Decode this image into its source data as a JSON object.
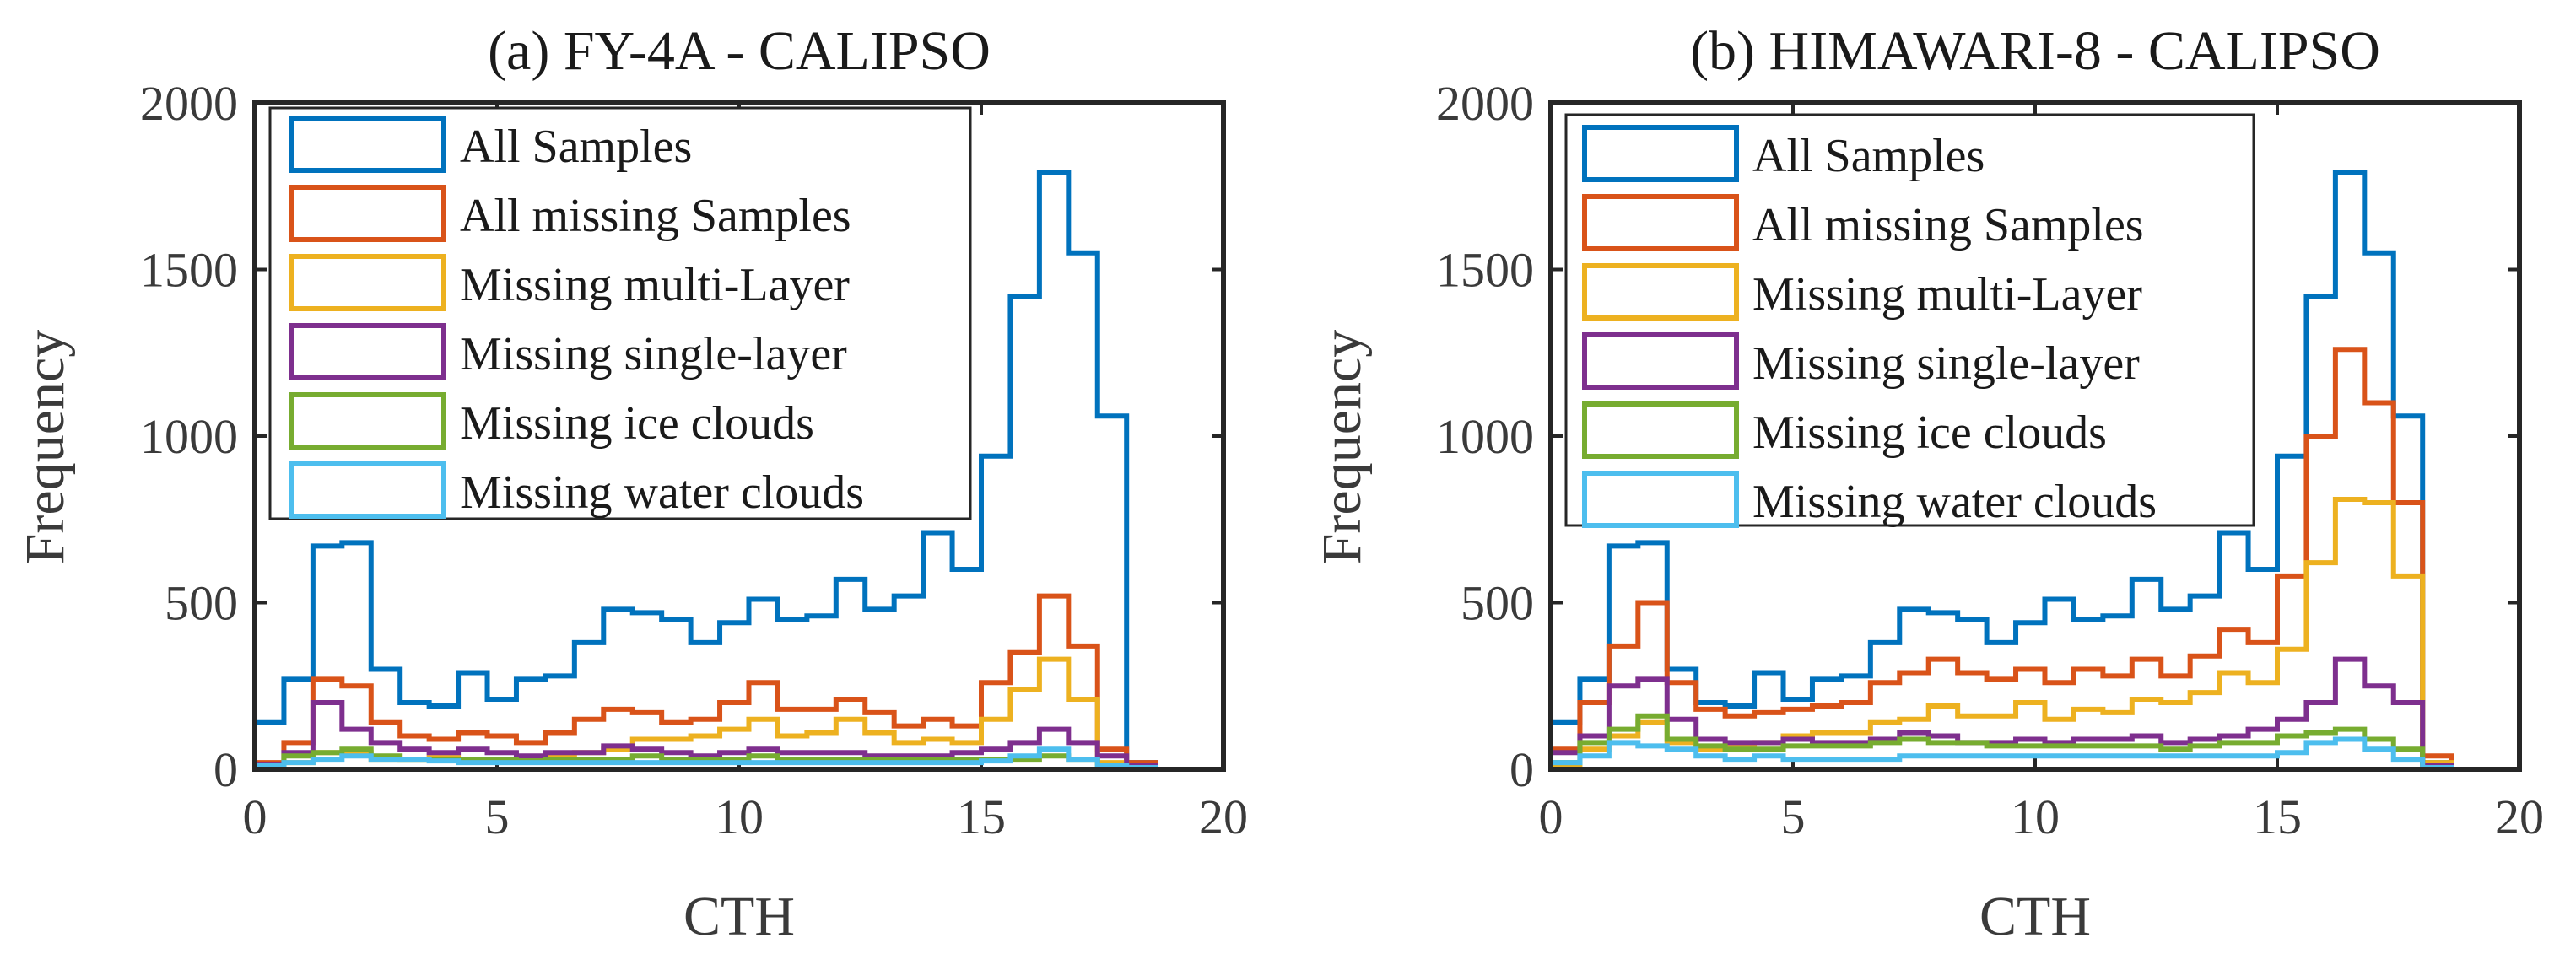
{
  "chart_data": [
    {
      "type": "histogram",
      "title": "(a) FY-4A - CALIPSO",
      "xlabel": "CTH",
      "ylabel": "Frequency",
      "xlim": [
        0,
        20
      ],
      "ylim": [
        0,
        2000
      ],
      "xticks": [
        0,
        5,
        10,
        15,
        20
      ],
      "yticks": [
        0,
        500,
        1000,
        1500,
        2000
      ],
      "legend_position": "top-left",
      "bin_edges": [
        0,
        0.6,
        1.2,
        1.8,
        2.4,
        3.0,
        3.6,
        4.2,
        4.8,
        5.4,
        6.0,
        6.6,
        7.2,
        7.8,
        8.4,
        9.0,
        9.6,
        10.2,
        10.8,
        11.4,
        12.0,
        12.6,
        13.2,
        13.8,
        14.4,
        15.0,
        15.6,
        16.2,
        16.8,
        17.4,
        18.0,
        18.6
      ],
      "series": [
        {
          "name": "All Samples",
          "color": "#0072BD",
          "values": [
            140,
            270,
            670,
            680,
            300,
            200,
            190,
            290,
            210,
            270,
            280,
            380,
            480,
            470,
            450,
            380,
            440,
            510,
            450,
            460,
            570,
            480,
            520,
            710,
            600,
            940,
            1420,
            1790,
            1550,
            1060,
            20
          ]
        },
        {
          "name": "All missing Samples",
          "color": "#D95319",
          "values": [
            20,
            80,
            270,
            250,
            140,
            100,
            90,
            110,
            100,
            80,
            110,
            150,
            180,
            170,
            140,
            150,
            200,
            260,
            180,
            180,
            210,
            170,
            130,
            150,
            130,
            260,
            350,
            520,
            370,
            60,
            20
          ]
        },
        {
          "name": "Missing multi-Layer",
          "color": "#EDB120",
          "values": [
            5,
            20,
            50,
            50,
            30,
            30,
            35,
            30,
            30,
            30,
            40,
            50,
            60,
            90,
            90,
            100,
            120,
            150,
            100,
            110,
            150,
            110,
            80,
            90,
            80,
            150,
            240,
            330,
            210,
            20,
            5
          ]
        },
        {
          "name": "Missing single-layer",
          "color": "#7E2F8E",
          "values": [
            15,
            50,
            200,
            120,
            80,
            60,
            50,
            60,
            50,
            40,
            50,
            50,
            70,
            60,
            50,
            40,
            50,
            60,
            50,
            50,
            50,
            40,
            40,
            40,
            50,
            60,
            80,
            120,
            80,
            40,
            10
          ]
        },
        {
          "name": "Missing ice clouds",
          "color": "#77AC30",
          "values": [
            10,
            40,
            50,
            60,
            40,
            30,
            30,
            30,
            30,
            25,
            30,
            30,
            30,
            40,
            30,
            30,
            30,
            40,
            30,
            30,
            30,
            30,
            30,
            30,
            30,
            30,
            30,
            40,
            30,
            10,
            5
          ]
        },
        {
          "name": "Missing water clouds",
          "color": "#4DBEEE",
          "values": [
            10,
            20,
            30,
            40,
            30,
            30,
            25,
            20,
            20,
            20,
            20,
            20,
            20,
            20,
            20,
            20,
            20,
            20,
            20,
            20,
            20,
            20,
            20,
            20,
            20,
            25,
            40,
            60,
            30,
            10,
            5
          ]
        }
      ]
    },
    {
      "type": "histogram",
      "title": "(b) HIMAWARI-8 - CALIPSO",
      "xlabel": "CTH",
      "ylabel": "Frequency",
      "xlim": [
        0,
        20
      ],
      "ylim": [
        0,
        2000
      ],
      "xticks": [
        0,
        5,
        10,
        15,
        20
      ],
      "yticks": [
        0,
        500,
        1000,
        1500,
        2000
      ],
      "legend_position": "top-left",
      "bin_edges": [
        0,
        0.6,
        1.2,
        1.8,
        2.4,
        3.0,
        3.6,
        4.2,
        4.8,
        5.4,
        6.0,
        6.6,
        7.2,
        7.8,
        8.4,
        9.0,
        9.6,
        10.2,
        10.8,
        11.4,
        12.0,
        12.6,
        13.2,
        13.8,
        14.4,
        15.0,
        15.6,
        16.2,
        16.8,
        17.4,
        18.0,
        18.6
      ],
      "series": [
        {
          "name": "All Samples",
          "color": "#0072BD",
          "values": [
            140,
            270,
            670,
            680,
            300,
            200,
            190,
            290,
            210,
            270,
            280,
            380,
            480,
            470,
            450,
            380,
            440,
            510,
            450,
            460,
            570,
            480,
            520,
            710,
            600,
            940,
            1420,
            1790,
            1550,
            1060,
            20
          ]
        },
        {
          "name": "All missing Samples",
          "color": "#D95319",
          "values": [
            60,
            200,
            370,
            500,
            260,
            180,
            160,
            170,
            180,
            190,
            200,
            260,
            290,
            330,
            290,
            270,
            300,
            260,
            300,
            280,
            330,
            280,
            340,
            420,
            380,
            580,
            1000,
            1260,
            1100,
            800,
            40
          ]
        },
        {
          "name": "Missing multi-Layer",
          "color": "#EDB120",
          "values": [
            10,
            60,
            100,
            140,
            80,
            60,
            70,
            80,
            100,
            110,
            110,
            140,
            150,
            190,
            160,
            160,
            200,
            150,
            180,
            170,
            210,
            200,
            230,
            290,
            260,
            360,
            620,
            810,
            800,
            580,
            20
          ]
        },
        {
          "name": "Missing single-layer",
          "color": "#7E2F8E",
          "values": [
            50,
            100,
            250,
            270,
            150,
            90,
            80,
            80,
            90,
            80,
            80,
            90,
            110,
            100,
            80,
            80,
            90,
            80,
            90,
            90,
            100,
            80,
            90,
            100,
            120,
            150,
            200,
            330,
            250,
            200,
            10
          ]
        },
        {
          "name": "Missing ice clouds",
          "color": "#77AC30",
          "values": [
            20,
            80,
            120,
            160,
            90,
            70,
            60,
            60,
            70,
            70,
            70,
            80,
            90,
            80,
            80,
            70,
            70,
            70,
            70,
            70,
            70,
            60,
            70,
            80,
            80,
            100,
            110,
            120,
            90,
            60,
            5
          ]
        },
        {
          "name": "Missing water clouds",
          "color": "#4DBEEE",
          "values": [
            20,
            40,
            80,
            70,
            60,
            40,
            30,
            40,
            30,
            30,
            30,
            30,
            40,
            40,
            40,
            40,
            40,
            40,
            40,
            40,
            40,
            40,
            40,
            40,
            40,
            50,
            80,
            90,
            60,
            30,
            5
          ]
        }
      ]
    }
  ]
}
